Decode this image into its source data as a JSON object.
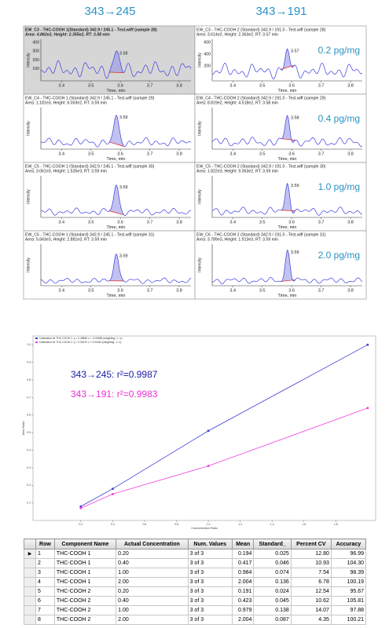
{
  "headers": [
    "343→245",
    "343→191"
  ],
  "panels": [
    {
      "title": "EW_C3 - THC-COOH 1(Standard) 342.9 / 245.1 - Test.wiff (sample 28)",
      "info": "Area: 4.862e2, Height: 2.355e2, RT: 3.58 min",
      "peak_label": "3.58",
      "yticks": [
        "400",
        "300",
        "200",
        "100"
      ]
    },
    {
      "title": "EW_C3 - THC-COOH 2 (Standard) 342.9 / 191.0 - Test.wiff (sample 28)",
      "info": "Area: 3.614e2, Height: 2.363e2, RT: 3.57 min",
      "peak_label": "3.57",
      "concentration": "0.2 pg/mg",
      "yticks": [
        "600",
        "400",
        "200"
      ]
    },
    {
      "title": "EW_C4 - THC-COOH 1 (Standard) 342.9 / 245.1 - Test.wiff (sample 29)",
      "info": "Area: 1.181e3, Height: 6.003e2, RT: 3.59 min",
      "peak_label": "3.59"
    },
    {
      "title": "EW_C4 - THC-COOH 2 (Standard) 342.9 / 191.0 - Test.wiff (sample 29)",
      "info": "Area: 8.819e2, Height: 4.518e2, RT: 3.58 min",
      "peak_label": "3.58",
      "concentration": "0.4 pg/mg"
    },
    {
      "title": "EW_C5 - THC-COOH 1 (Standard) 342.9 / 245.1 - Test.wiff (sample 30)",
      "info": "Area: 3.061e3, Height: 1.535e3, RT: 3.59 min",
      "peak_label": "3.59"
    },
    {
      "title": "EW_C5 - THC-COOH 2 (Standard) 342.9 / 191.0 - Test.wiff (sample 30)",
      "info": "Area: 1.822e3, Height: 9.363e2, RT: 3.59 min",
      "peak_label": "3.59",
      "concentration": "1.0 pg/mg"
    },
    {
      "title": "EW_C6 - THC-COOH 1 (Standard) 342.9 / 245.1 - Test.wiff (sample 31)",
      "info": "Area: 5.843e3, Height: 2.881e3, RT: 3.59 min",
      "peak_label": "3.59"
    },
    {
      "title": "EW_C6 - THC-COOH 2 (Standard) 342.9 / 191.0 - Test.wiff (sample 31)",
      "info": "Area: 3.789e3, Height: 1.913e3, RT: 3.59 min",
      "peak_label": "3.59",
      "concentration": "2.0 pg/mg"
    }
  ],
  "panel_xticks": [
    "3.4",
    "3.5",
    "3.6",
    "3.7",
    "3.8"
  ],
  "panel_x_label": "Time, min",
  "panel_y_label": "Intensity",
  "chart_data": {
    "type": "scatter",
    "x_label": "Concentration Ratio",
    "y_label": "Area Ratio",
    "annotations": [
      {
        "text": "343→245: r²=0.9987",
        "color": "#1a1aa8"
      },
      {
        "text": "343→191: r²=0.9983",
        "color": "#e632d2"
      }
    ],
    "xlim": [
      -0.1,
      2.05
    ],
    "ylim": [
      0,
      1.05
    ],
    "xticks": [
      0.2,
      0.4,
      0.6,
      0.8,
      {
        "value": 1.0,
        "label": "1.0"
      },
      1.2,
      1.4,
      1.6,
      1.8
    ],
    "yticks": [
      0.1,
      0.2,
      0.3,
      0.4,
      0.5,
      0.6,
      0.7,
      0.8,
      0.9,
      {
        "value": 1.0,
        "label": "1.0"
      }
    ],
    "series": [
      {
        "name": "Calibration for THC-COOH 1: y = 0.49896 x + -0.00855 (weighting: 1 / x)",
        "color": "#3b3bd6",
        "x": [
          0.2,
          0.4,
          1.0,
          2.0
        ],
        "values": [
          0.08,
          0.18,
          0.51,
          1.0
        ]
      },
      {
        "name": "Calibration for THC-COOH 2: y = 0.32470 x + 0.00342 (weighting: 1 / x)",
        "color": "#f040e0",
        "x": [
          0.2,
          0.4,
          1.0,
          2.0
        ],
        "values": [
          0.07,
          0.15,
          0.31,
          0.64
        ]
      }
    ]
  },
  "table": {
    "columns": [
      "Row",
      "Component Name",
      "Actual Concentration",
      "Num. Values",
      "Mean",
      "Standard_",
      "Percent CV",
      "Accuracy"
    ],
    "rows": [
      [
        "1",
        "THC-COOH 1",
        "0.20",
        "3 of 3",
        "0.194",
        "0.025",
        "12.80",
        "96.99"
      ],
      [
        "2",
        "THC-COOH 1",
        "0.40",
        "3 of 3",
        "0.417",
        "0.046",
        "10.93",
        "104.30"
      ],
      [
        "3",
        "THC-COOH 1",
        "1.00",
        "3 of 3",
        "0.984",
        "0.074",
        "7.54",
        "98.39"
      ],
      [
        "4",
        "THC-COOH 1",
        "2.00",
        "3 of 3",
        "2.004",
        "0.136",
        "6.78",
        "100.19"
      ],
      [
        "5",
        "THC-COOH 2",
        "0.20",
        "3 of 3",
        "0.191",
        "0.024",
        "12.54",
        "95.67"
      ],
      [
        "6",
        "THC-COOH 2",
        "0.40",
        "3 of 3",
        "0.423",
        "0.045",
        "10.62",
        "105.81"
      ],
      [
        "7",
        "THC-COOH 2",
        "1.00",
        "3 of 3",
        "0.979",
        "0.138",
        "14.07",
        "97.88"
      ],
      [
        "8",
        "THC-COOH 2",
        "2.00",
        "3 of 3",
        "2.004",
        "0.087",
        "4.35",
        "100.21"
      ]
    ]
  }
}
